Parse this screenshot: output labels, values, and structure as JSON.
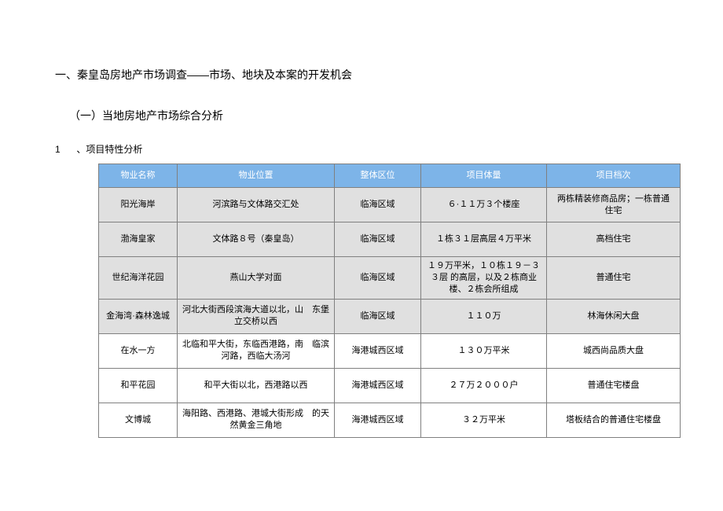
{
  "heading": "一、秦皇岛房地产市场调查——市场、地块及本案的开发机会",
  "subheading": "（一）当地房地产市场综合分析",
  "listhead_num": "1",
  "listhead_text": "、项目特性分析",
  "table": {
    "header_bg": "#7db4e8",
    "header_fg": "#ffffff",
    "border_color": "#808080",
    "shaded_bg": "#e0e0e0",
    "columns": [
      "物业名称",
      "物业位置",
      "整体区位",
      "项目体量",
      "项目档次"
    ],
    "rows": [
      {
        "shaded": true,
        "cells": [
          "阳光海岸",
          "河滨路与文体路交汇处",
          "临海区域",
          "６·１１万３个楼座",
          "两栋精装修商品房；一栋普通　住宅"
        ]
      },
      {
        "shaded": true,
        "cells": [
          "渤海皇家",
          "文体路８号（秦皇岛）",
          "临海区域",
          "１栋３１层高层４万平米",
          "高档住宅"
        ]
      },
      {
        "shaded": true,
        "cells": [
          "世纪海洋花园",
          "燕山大学对面",
          "临海区域",
          "１９万平米，１０栋１９－３３层\n的高层，以及２栋商业楼、２栋会所组成",
          "普通住宅"
        ]
      },
      {
        "shaded": true,
        "cells": [
          "金海湾·森林逸城",
          "河北大街西段滨海大道以北，山　东堡立交桥以西",
          "临海区域",
          "１１０万",
          "林海休闲大盘"
        ]
      },
      {
        "shaded": false,
        "cells": [
          "在水一方",
          "北临和平大街，东临西港路，南　临滨河路，西临大汤河",
          "海港城西区域",
          "１３０万平米",
          "城西尚品质大盘"
        ]
      },
      {
        "shaded": false,
        "cells": [
          "和平花园",
          "和平大街以北，西港路以西",
          "海港城西区域",
          "２７万２０００户",
          "普通住宅楼盘"
        ]
      },
      {
        "shaded": false,
        "cells": [
          "文博城",
          "海阳路、西港路、港城大街形成　的天然黄金三角地",
          "海港城西区域",
          "３２万平米",
          "塔板结合的普通住宅楼盘"
        ]
      }
    ]
  }
}
